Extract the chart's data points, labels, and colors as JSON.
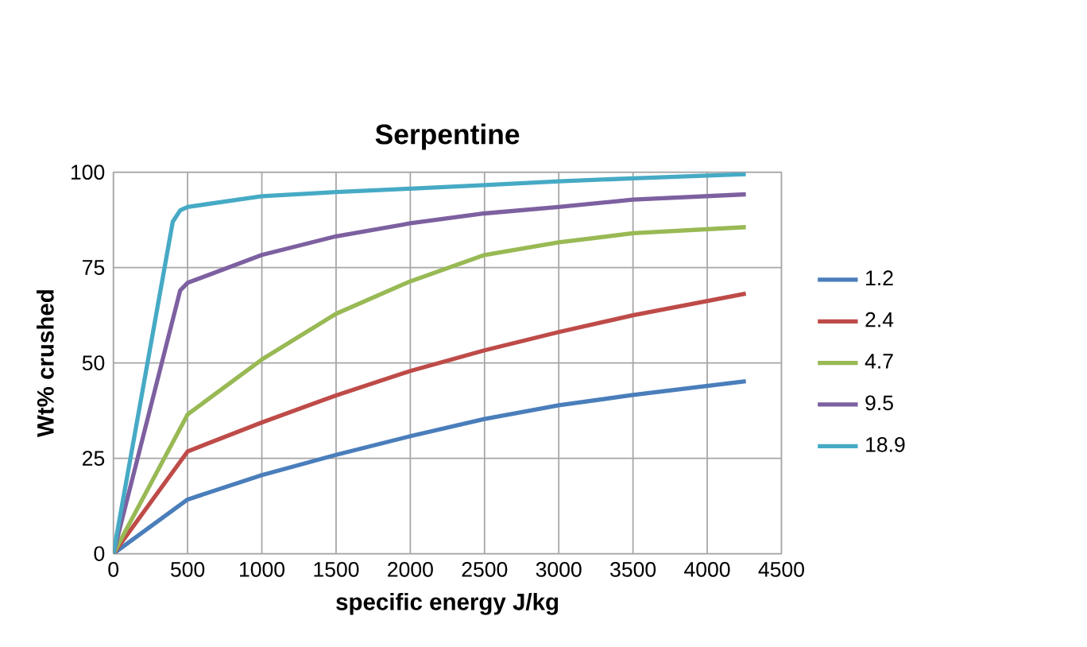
{
  "chart_data": {
    "type": "line",
    "title": "Serpentine",
    "xlabel": "specific energy  J/kg",
    "ylabel": "Wt% crushed",
    "xlim": [
      0,
      4500
    ],
    "xticks": [
      0,
      500,
      1000,
      1500,
      2000,
      2500,
      3000,
      3500,
      4000,
      4500
    ],
    "ylim": [
      0,
      100
    ],
    "yticks": [
      0,
      25,
      50,
      75,
      100
    ],
    "grid": true,
    "legend": "right",
    "marker": "none",
    "series": [
      {
        "name": "1.2",
        "color": "#4a7ebb",
        "x": [
          0,
          500,
          1000,
          1500,
          2000,
          2500,
          3000,
          3500,
          4260
        ],
        "values": [
          0,
          14.2,
          20.6,
          25.9,
          30.8,
          35.3,
          38.9,
          41.6,
          45.2
        ]
      },
      {
        "name": "2.4",
        "color": "#be4b48",
        "x": [
          0,
          500,
          1000,
          1500,
          2000,
          2500,
          3000,
          3500,
          4260
        ],
        "values": [
          0,
          26.8,
          34.4,
          41.5,
          47.9,
          53.3,
          58.1,
          62.5,
          68.2
        ]
      },
      {
        "name": "4.7",
        "color": "#98b954",
        "x": [
          0,
          500,
          1000,
          1500,
          2000,
          2500,
          3000,
          3500,
          4260
        ],
        "values": [
          0,
          36.5,
          50.9,
          62.9,
          71.4,
          78.3,
          81.6,
          84,
          85.6
        ]
      },
      {
        "name": "9.5",
        "color": "#7d60a0",
        "x": [
          0,
          450,
          500,
          1000,
          1500,
          2000,
          2500,
          3000,
          3500,
          4260
        ],
        "values": [
          0,
          69,
          71,
          78.3,
          83.2,
          86.6,
          89.2,
          90.9,
          92.8,
          94.2
        ]
      },
      {
        "name": "18.9",
        "color": "#46aac5",
        "x": [
          0,
          400,
          450,
          500,
          1000,
          1500,
          2000,
          2500,
          3000,
          3500,
          4260
        ],
        "values": [
          0,
          87,
          90,
          90.9,
          93.7,
          94.8,
          95.7,
          96.6,
          97.6,
          98.4,
          99.5
        ]
      }
    ]
  }
}
